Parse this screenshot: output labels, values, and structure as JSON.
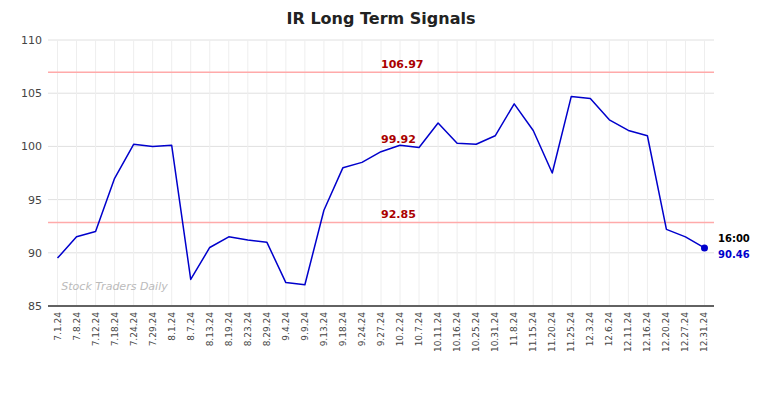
{
  "chart_data": {
    "type": "line",
    "title": "IR Long Term Signals",
    "categories": [
      "7.1.24",
      "7.8.24",
      "7.12.24",
      "7.18.24",
      "7.24.24",
      "7.29.24",
      "8.1.24",
      "8.7.24",
      "8.13.24",
      "8.19.24",
      "8.23.24",
      "8.29.24",
      "9.4.24",
      "9.9.24",
      "9.13.24",
      "9.18.24",
      "9.24.24",
      "9.27.24",
      "10.2.24",
      "10.7.24",
      "10.11.24",
      "10.16.24",
      "10.25.24",
      "10.31.24",
      "11.8.24",
      "11.15.24",
      "11.20.24",
      "11.25.24",
      "12.3.24",
      "12.6.24",
      "12.11.24",
      "12.16.24",
      "12.20.24",
      "12.27.24",
      "12.31.24"
    ],
    "series": [
      {
        "color": "#0000cc",
        "values": [
          89.5,
          91.5,
          92.0,
          97.0,
          100.2,
          100.0,
          100.1,
          87.5,
          90.5,
          91.5,
          91.2,
          91.0,
          87.2,
          87.0,
          94.0,
          98.0,
          98.5,
          99.5,
          100.1,
          99.9,
          102.2,
          100.3,
          100.2,
          101.0,
          104.0,
          101.5,
          97.5,
          104.7,
          104.5,
          102.5,
          101.5,
          101.0,
          92.2,
          91.5,
          90.46
        ]
      }
    ],
    "hlines": [
      {
        "value": 106.97,
        "color": "#ffaaaa"
      },
      {
        "value": 92.85,
        "color": "#ffaaaa"
      }
    ],
    "annotations": [
      {
        "text": "106.97",
        "value": 106.97,
        "color": "#aa0000"
      },
      {
        "text": "99.92",
        "value": 99.92,
        "color": "#aa0000"
      },
      {
        "text": "92.85",
        "value": 92.85,
        "color": "#aa0000"
      }
    ],
    "last_point": {
      "label": "16:00",
      "value": 90.46,
      "color": "#0000cc"
    },
    "watermark": "Stock Traders Daily",
    "ylim": [
      85,
      110
    ],
    "yticks": [
      85,
      90,
      95,
      100,
      105,
      110
    ],
    "grid": true
  }
}
